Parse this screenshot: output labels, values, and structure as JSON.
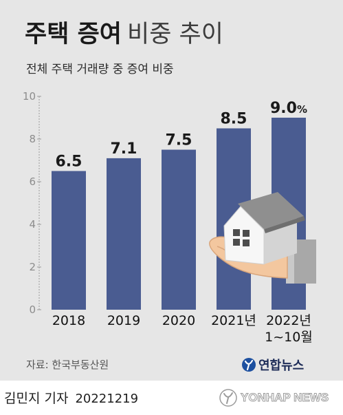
{
  "chart_data": {
    "type": "bar",
    "title": [
      "주택 증여",
      "비중 추이"
    ],
    "subtitle": "전체 주택 거래량 중 증여 비중",
    "categories": [
      "2018",
      "2019",
      "2020",
      "2021년",
      "2022년\n1~10월"
    ],
    "values": [
      6.5,
      7.1,
      7.5,
      8.5,
      9.0
    ],
    "value_labels": [
      "6.5",
      "7.1",
      "7.5",
      "8.5",
      "9.0%"
    ],
    "ylim": [
      0,
      10
    ],
    "y_ticks": [
      0,
      2,
      4,
      6,
      8,
      10
    ],
    "grid": false
  },
  "source": "자료: 한국부동산원",
  "brand": {
    "name": "연합뉴스",
    "logo_icon": "yonhap-logo-icon"
  },
  "byline": {
    "reporter": "김민지 기자",
    "date": "20221219"
  },
  "watermark": {
    "text": "YONHAP NEWS",
    "logo_icon": "yonhap-watermark-icon"
  },
  "illustration": {
    "icon": "house-in-hand-icon"
  },
  "colors": {
    "panel": "#e6e6e6",
    "bar": "#4a5c91",
    "axis": "#9a9a9a",
    "tick_label": "#8c8c8c",
    "text": "#1a1a1a",
    "brand": "#1c2b57",
    "brand_logo": "#1d50a0"
  }
}
